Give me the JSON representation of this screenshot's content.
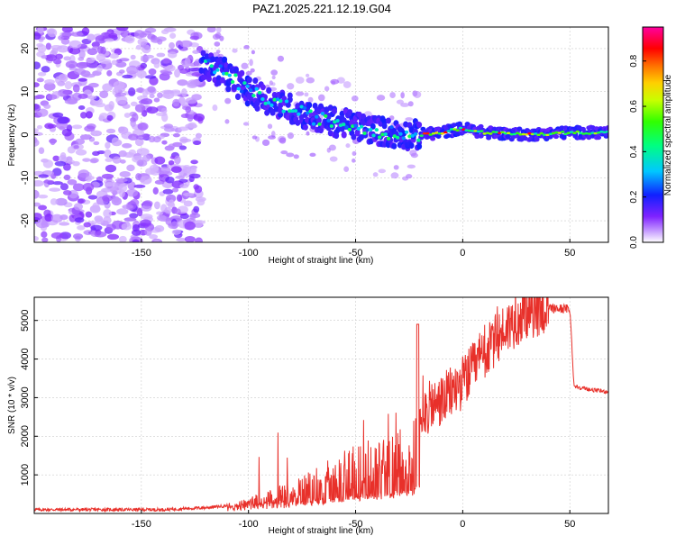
{
  "title": "PAZ1.2025.221.12.19.G04",
  "chart_data": [
    {
      "type": "heatmap",
      "xlabel": "Height of straight line (km)",
      "ylabel": "Frequency (Hz)",
      "xlim": [
        -200,
        68
      ],
      "ylim": [
        -25,
        25
      ],
      "xticks": [
        -150,
        -100,
        -50,
        0,
        50
      ],
      "yticks": [
        -20,
        -10,
        0,
        10,
        20
      ],
      "colorbar": {
        "label": "Normalized spectral amplitude",
        "range": [
          0,
          0.95
        ],
        "ticks": [
          0.0,
          0.2,
          0.4,
          0.6,
          0.8
        ],
        "colormap": "white-purple-blue-cyan-green-yellow-orange-red-magenta"
      },
      "ridge": [
        {
          "x": -120,
          "y": 16
        },
        {
          "x": -110,
          "y": 14
        },
        {
          "x": -100,
          "y": 10
        },
        {
          "x": -90,
          "y": 8
        },
        {
          "x": -80,
          "y": 6
        },
        {
          "x": -70,
          "y": 4
        },
        {
          "x": -60,
          "y": 3
        },
        {
          "x": -50,
          "y": 2
        },
        {
          "x": -40,
          "y": 1
        },
        {
          "x": -30,
          "y": 0
        },
        {
          "x": -20,
          "y": 0
        },
        {
          "x": -10,
          "y": 0.5
        },
        {
          "x": 0,
          "y": 1.5
        },
        {
          "x": 10,
          "y": 0.5
        },
        {
          "x": 30,
          "y": 0
        },
        {
          "x": 50,
          "y": 0.5
        },
        {
          "x": 68,
          "y": 0.5
        }
      ],
      "grid": true
    },
    {
      "type": "line",
      "xlabel": "Height of straight line (km)",
      "ylabel": "SNR (10 * v/v)",
      "xlim": [
        -200,
        68
      ],
      "ylim": [
        0,
        5600
      ],
      "xticks": [
        -150,
        -100,
        -50,
        0,
        50
      ],
      "yticks": [
        1000,
        2000,
        3000,
        4000,
        5000
      ],
      "color": "#e8302a",
      "series": [
        {
          "x": [
            -200,
            -180,
            -160,
            -140,
            -120,
            -110,
            -100,
            -90,
            -80,
            -70,
            -60,
            -50,
            -40,
            -30,
            -22,
            -20,
            -10,
            0,
            10,
            20,
            30,
            40,
            50,
            52,
            60,
            68
          ],
          "values": [
            100,
            100,
            100,
            100,
            150,
            200,
            300,
            450,
            600,
            800,
            1100,
            1300,
            1400,
            1600,
            1800,
            2600,
            2900,
            3400,
            4100,
            4800,
            5200,
            5300,
            5300,
            3300,
            3200,
            3150
          ]
        }
      ],
      "grid": true
    }
  ]
}
